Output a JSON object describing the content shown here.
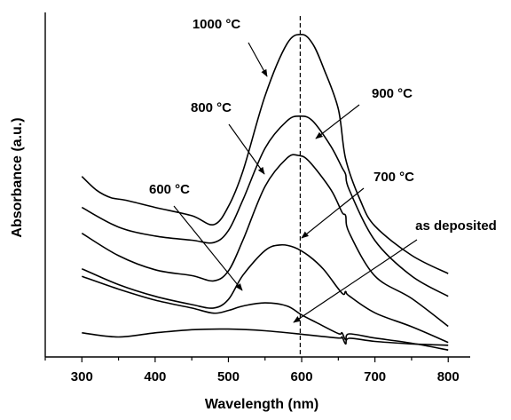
{
  "chart_data": {
    "type": "line",
    "xlabel": "Wavelength (nm)",
    "ylabel": "Absorbance (a.u.)",
    "xlim": [
      250,
      830
    ],
    "ylim": [
      0,
      1
    ],
    "x_ticks": [
      300,
      400,
      500,
      600,
      700,
      800
    ],
    "y_ticks_labeled": false,
    "grid": false,
    "legend": "none",
    "reference_line_x": 598,
    "series": [
      {
        "name": "as deposited",
        "x": [
          300,
          350,
          400,
          450,
          500,
          550,
          600,
          650,
          655,
          660,
          665,
          700,
          750,
          800
        ],
        "y": [
          0.07,
          0.058,
          0.07,
          0.079,
          0.081,
          0.076,
          0.066,
          0.055,
          0.058,
          0.038,
          0.054,
          0.045,
          0.038,
          0.034
        ]
      },
      {
        "name": "600 °C",
        "x": [
          300,
          350,
          400,
          450,
          480,
          500,
          520,
          550,
          580,
          600,
          620,
          650,
          655,
          660,
          665,
          700,
          750,
          800
        ],
        "y": [
          0.234,
          0.197,
          0.165,
          0.142,
          0.127,
          0.135,
          0.148,
          0.157,
          0.148,
          0.122,
          0.1,
          0.068,
          0.07,
          0.05,
          0.067,
          0.055,
          0.04,
          0.02
        ]
      },
      {
        "name": "700 °C",
        "x": [
          300,
          350,
          400,
          450,
          480,
          500,
          520,
          550,
          570,
          590,
          610,
          630,
          655,
          660,
          665,
          700,
          750,
          800
        ],
        "y": [
          0.256,
          0.21,
          0.176,
          0.152,
          0.142,
          0.167,
          0.238,
          0.309,
          0.325,
          0.318,
          0.293,
          0.254,
          0.185,
          0.19,
          0.177,
          0.128,
          0.088,
          0.042
        ]
      },
      {
        "name": "800 °C",
        "x": [
          300,
          350,
          400,
          450,
          480,
          500,
          520,
          550,
          580,
          595,
          610,
          640,
          655,
          660,
          665,
          700,
          750,
          800
        ],
        "y": [
          0.359,
          0.294,
          0.253,
          0.236,
          0.221,
          0.25,
          0.34,
          0.495,
          0.577,
          0.585,
          0.568,
          0.485,
          0.42,
          0.41,
          0.36,
          0.235,
          0.17,
          0.089
        ]
      },
      {
        "name": "900 °C",
        "x": [
          300,
          350,
          400,
          450,
          480,
          500,
          520,
          550,
          580,
          598,
          615,
          640,
          655,
          660,
          665,
          700,
          750,
          800
        ],
        "y": [
          0.434,
          0.377,
          0.351,
          0.339,
          0.332,
          0.367,
          0.457,
          0.606,
          0.685,
          0.699,
          0.685,
          0.611,
          0.55,
          0.53,
          0.485,
          0.338,
          0.235,
          0.176
        ]
      },
      {
        "name": "1000 °C",
        "x": [
          300,
          320,
          340,
          360,
          400,
          450,
          480,
          500,
          520,
          550,
          580,
          600,
          615,
          630,
          650,
          660,
          680,
          700,
          750,
          800
        ],
        "y": [
          0.524,
          0.484,
          0.462,
          0.455,
          0.434,
          0.41,
          0.384,
          0.437,
          0.541,
          0.758,
          0.909,
          0.936,
          0.909,
          0.838,
          0.72,
          0.575,
          0.455,
          0.38,
          0.295,
          0.242
        ]
      }
    ],
    "annotations": [
      {
        "text": "1000 °C",
        "target_series": "1000 °C"
      },
      {
        "text": "900 °C",
        "target_series": "900 °C"
      },
      {
        "text": "800 °C",
        "target_series": "800 °C"
      },
      {
        "text": "700 °C",
        "target_series": "700 °C"
      },
      {
        "text": "600 °C",
        "target_series": "600 °C"
      },
      {
        "text": "as deposited",
        "target_series": "as deposited"
      }
    ]
  }
}
